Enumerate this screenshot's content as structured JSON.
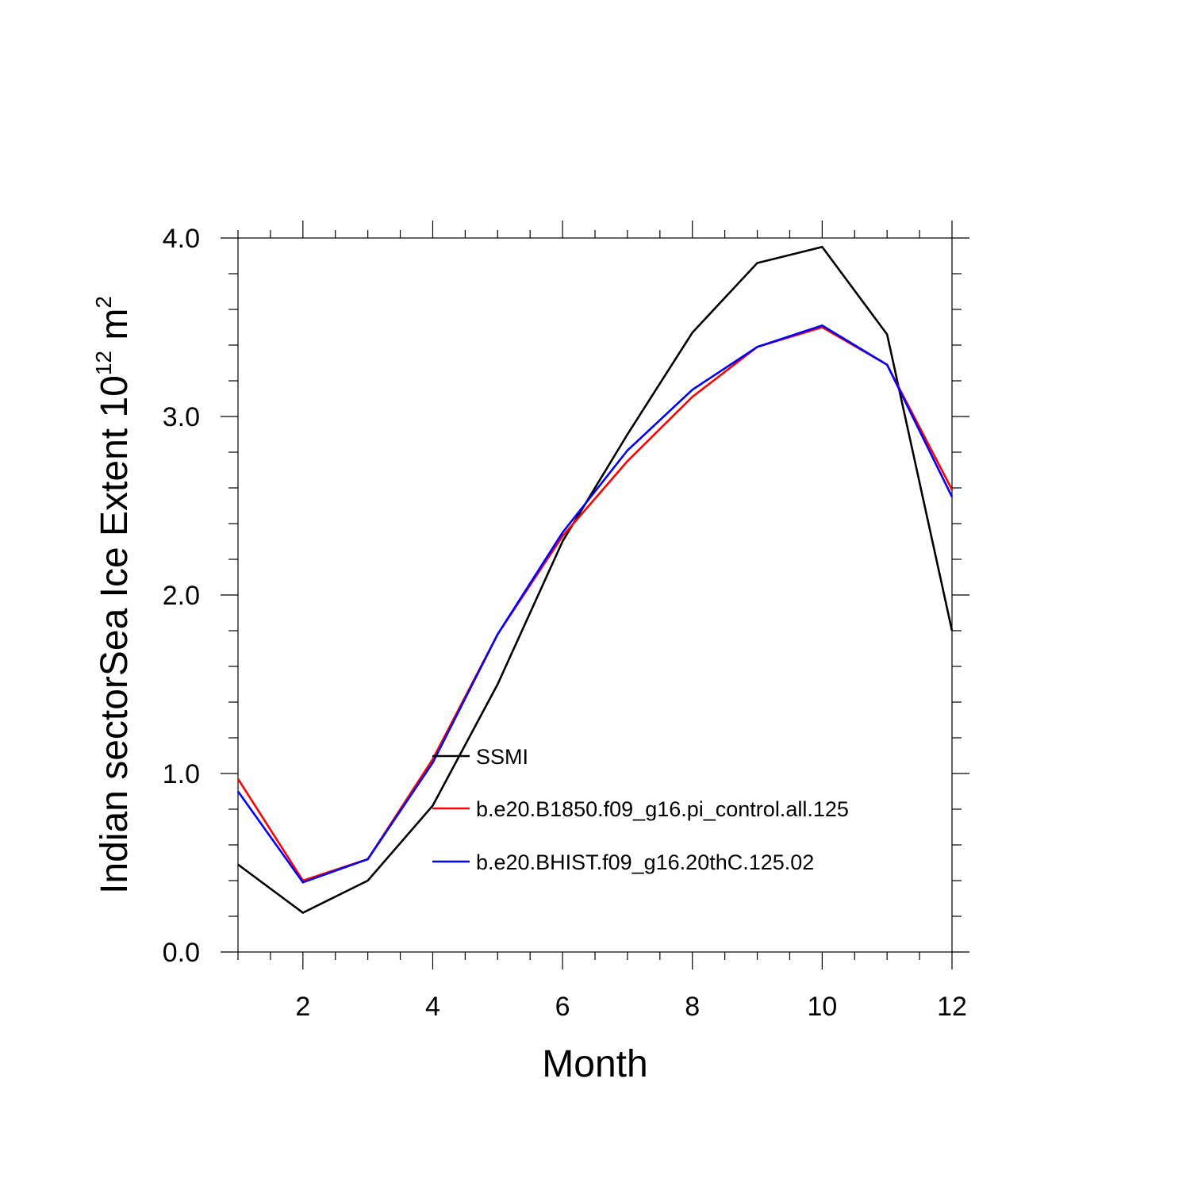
{
  "chart_data": {
    "type": "line",
    "xlabel": "Month",
    "ylabel": {
      "prefix": "Indian sectorSea Ice Extent 10",
      "exp1": "12",
      "mid": " m",
      "exp2": "2"
    },
    "xlim": [
      1,
      12
    ],
    "ylim": [
      0.0,
      4.0
    ],
    "xticks": [
      2,
      4,
      6,
      8,
      10,
      12
    ],
    "xtick_labels": [
      "2",
      "4",
      "6",
      "8",
      "10",
      "12"
    ],
    "yticks": [
      0.0,
      1.0,
      2.0,
      3.0,
      4.0
    ],
    "ytick_labels": [
      "0.0",
      "1.0",
      "2.0",
      "3.0",
      "4.0"
    ],
    "grid": false,
    "legend_position": "inside-center",
    "x": [
      1,
      2,
      3,
      4,
      5,
      6,
      7,
      8,
      9,
      10,
      11,
      12
    ],
    "series": [
      {
        "name": "SSMI",
        "color": "#000000",
        "values": [
          0.49,
          0.22,
          0.4,
          0.82,
          1.5,
          2.3,
          2.9,
          3.47,
          3.86,
          3.95,
          3.46,
          1.8
        ]
      },
      {
        "name": "b.e20.B1850.f09_g16.pi_control.all.125",
        "color": "#ff0000",
        "values": [
          0.97,
          0.4,
          0.52,
          1.08,
          1.78,
          2.33,
          2.75,
          3.11,
          3.39,
          3.5,
          3.29,
          2.59
        ]
      },
      {
        "name": "b.e20.BHIST.f09_g16.20thC.125.02",
        "color": "#0000ff",
        "values": [
          0.9,
          0.39,
          0.52,
          1.06,
          1.78,
          2.35,
          2.81,
          3.15,
          3.39,
          3.51,
          3.29,
          2.55
        ]
      }
    ]
  }
}
